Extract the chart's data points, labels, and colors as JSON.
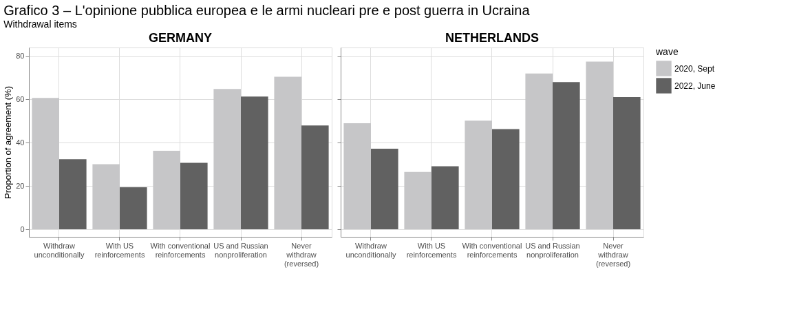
{
  "chart_data": [
    {
      "type": "bar",
      "title": "GERMANY",
      "annotations": [
        "Grafico 3 – L'opinione pubblica europea e le armi nucleari pre e post guerra in Ucraina",
        "Withdrawal items"
      ],
      "ylabel": "Proportion of agreement (%)",
      "categories": [
        "Withdraw\nunconditionally",
        "With US\nreinforcements",
        "With conventional\nreinforcements",
        "US and Russian\nnonproliferation",
        "Never\nwithdraw\n(reversed)"
      ],
      "series": [
        {
          "color": "#c6c6c8",
          "values": [
            60.7,
            30.1,
            36.3,
            64.8,
            70.5
          ]
        },
        {
          "color": "#616161",
          "values": [
            32.4,
            19.4,
            30.7,
            61.3,
            48.0
          ]
        }
      ],
      "ylim": [
        -3.5,
        84
      ],
      "yticks": [
        0,
        20,
        40,
        60,
        80
      ],
      "grid": true,
      "legend": false
    },
    {
      "type": "bar",
      "title": "NETHERLANDS",
      "legend_title": "wave",
      "categories": [
        "Withdraw\nunconditionally",
        "With US\nreinforcements",
        "With conventional\nreinforcements",
        "US and Russian\nnonproliferation",
        "Never\nwithdraw\n(reversed)"
      ],
      "series": [
        {
          "name": "2020, Sept",
          "color": "#c6c6c8",
          "values": [
            49.0,
            26.5,
            50.2,
            72.0,
            77.5
          ]
        },
        {
          "name": "2022, June",
          "color": "#616161",
          "values": [
            37.2,
            29.1,
            46.3,
            68.0,
            61.1
          ]
        }
      ],
      "ylim": [
        -3.5,
        84
      ],
      "yticks": [
        0,
        20,
        40,
        60,
        80
      ],
      "grid": true,
      "legend": "right",
      "tick_labels": "x"
    }
  ]
}
